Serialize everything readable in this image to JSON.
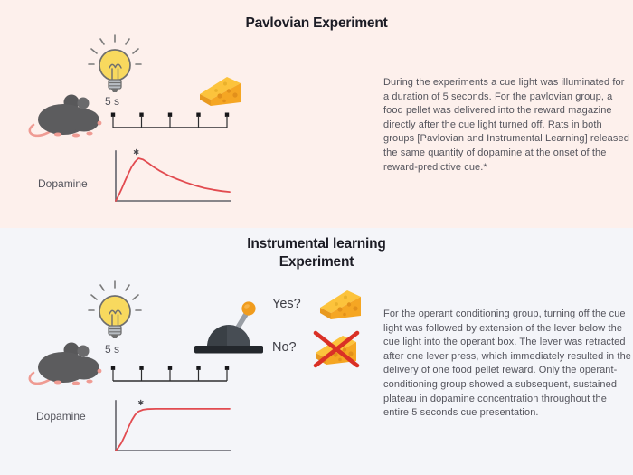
{
  "colors": {
    "top_bg": "#fdf0ec",
    "bottom_bg": "#f4f5f9",
    "title": "#1c1c25",
    "body_text": "#54545c",
    "curve_red": "#e24b50",
    "cross_red": "#da3026",
    "cheese_orange": "#f5a623",
    "cheese_top": "#fcc33c",
    "bulb_yellow": "#f8d95e",
    "lever_knob_orange": "#f09c1e",
    "mouse_gray": "#5c5c5e",
    "mouse_pink": "#ef9b93"
  },
  "timeline": {
    "tick_count": 5
  },
  "top": {
    "title": "Pavlovian Experiment",
    "cue_duration_label": "5 s",
    "dopamine_label": "Dopamine",
    "paragraph": "During the experiments a cue light was illuminated for a duration of 5 seconds. For the pavlovian group, a food pellet was delivered into the reward magazine directly after the cue light turned off. Rats in both groups [Pavlovian and Instrumental Learning] released the same quantity of dopamine at the onset of the reward-predictive cue.*"
  },
  "bottom": {
    "title_line1": "Instrumental learning",
    "title_line2": "Experiment",
    "cue_duration_label": "5 s",
    "yes_label": "Yes?",
    "no_label": "No?",
    "dopamine_label": "Dopamine",
    "paragraph": "For the operant conditioning group, turning off the cue light was followed by extension of the lever below the cue light into the operant box. The lever was retracted after one lever press, which immediately resulted in the delivery of one food pellet reward. Only the operant-conditioning group showed a subsequent, sustained plateau in dopamine concentration throughout the entire 5 seconds cue presentation."
  },
  "chart_data": [
    {
      "type": "line",
      "name": "pavlovian-dopamine-response",
      "ylabel": "Dopamine",
      "xlabel": "",
      "x": [
        0,
        0.02,
        0.05,
        0.08,
        0.11,
        0.14,
        0.17,
        0.2,
        0.24,
        0.28,
        0.33,
        0.39,
        0.46,
        0.54,
        0.62,
        0.7,
        0.78,
        0.86,
        0.93,
        1.0
      ],
      "y": [
        0,
        0.1,
        0.27,
        0.46,
        0.64,
        0.8,
        0.92,
        1.0,
        0.97,
        0.9,
        0.8,
        0.7,
        0.6,
        0.51,
        0.43,
        0.36,
        0.3,
        0.26,
        0.23,
        0.21
      ],
      "marker": {
        "x": 0.18,
        "y": 1.0,
        "label": "*"
      },
      "description": "Phasic dopamine peak at cue onset followed by decay"
    },
    {
      "type": "line",
      "name": "instrumental-dopamine-response",
      "ylabel": "Dopamine",
      "xlabel": "",
      "x": [
        0,
        0.02,
        0.05,
        0.08,
        0.11,
        0.14,
        0.17,
        0.2,
        0.24,
        0.28,
        0.35,
        0.45,
        0.55,
        0.65,
        0.8,
        1.0
      ],
      "y": [
        0,
        0.06,
        0.18,
        0.35,
        0.54,
        0.71,
        0.84,
        0.92,
        0.96,
        0.975,
        0.98,
        0.98,
        0.98,
        0.98,
        0.98,
        0.98
      ],
      "marker": {
        "x": 0.22,
        "y": 0.98,
        "label": "*"
      },
      "description": "Dopamine rise at cue onset with sustained plateau during 5 s cue"
    }
  ]
}
